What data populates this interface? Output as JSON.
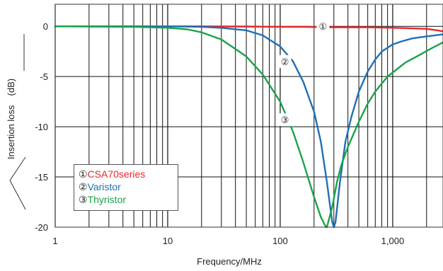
{
  "chart_data": {
    "type": "line",
    "xlabel": "Frequency/MHz",
    "ylabel": "Insertion loss　(dB)",
    "x_scale": "log",
    "xlim": [
      1,
      2800
    ],
    "ylim": [
      -20,
      2.2
    ],
    "grid": true,
    "x_ticks": [
      {
        "value": 1,
        "label": "1"
      },
      {
        "value": 10,
        "label": "10"
      },
      {
        "value": 100,
        "label": "100"
      },
      {
        "value": 1000,
        "label": "1,000"
      }
    ],
    "y_ticks": [
      {
        "value": 0,
        "label": "0"
      },
      {
        "value": -5,
        "label": "-5"
      },
      {
        "value": -10,
        "label": "-10"
      },
      {
        "value": -15,
        "label": "-15"
      },
      {
        "value": -20,
        "label": "-20"
      }
    ],
    "legend": {
      "placement": "bottom-left",
      "items": [
        {
          "marker": "①",
          "name": "CSA70series",
          "color": "#e8262a"
        },
        {
          "marker": "②",
          "name": "Varistor",
          "color": "#1f6fb5"
        },
        {
          "marker": "③",
          "name": "Thyristor",
          "color": "#1aa24a"
        }
      ]
    },
    "series": [
      {
        "name": "CSA70series",
        "marker": "①",
        "color": "#e8262a",
        "x": [
          1,
          10,
          50,
          100,
          150,
          300,
          600,
          1000,
          1500,
          2000,
          2500,
          2800
        ],
        "y": [
          0,
          0,
          -0.02,
          -0.05,
          -0.05,
          -0.1,
          -0.1,
          -0.15,
          -0.2,
          -0.25,
          -0.4,
          -0.5
        ]
      },
      {
        "name": "Varistor",
        "marker": "②",
        "color": "#1f6fb5",
        "x": [
          1,
          10,
          20,
          30,
          50,
          70,
          100,
          130,
          160,
          200,
          230,
          260,
          290,
          300,
          310,
          340,
          380,
          430,
          500,
          600,
          700,
          800,
          1000,
          1200,
          1500,
          2000,
          2800
        ],
        "y": [
          0,
          0,
          -0.05,
          -0.15,
          -0.4,
          -0.9,
          -2.0,
          -3.5,
          -5.5,
          -8.5,
          -11.5,
          -15.5,
          -19.5,
          -20,
          -19.5,
          -15.5,
          -11.5,
          -9,
          -6.5,
          -4.5,
          -3.3,
          -2.5,
          -1.8,
          -1.5,
          -1.2,
          -1.0,
          -0.8
        ]
      },
      {
        "name": "Thyristor",
        "marker": "③",
        "color": "#1aa24a",
        "x": [
          1,
          5,
          10,
          15,
          20,
          30,
          50,
          70,
          100,
          130,
          160,
          200,
          230,
          255,
          260,
          290,
          320,
          350,
          400,
          500,
          600,
          700,
          800,
          900,
          1000,
          1300,
          1700,
          2200,
          2800
        ],
        "y": [
          0,
          -0.05,
          -0.15,
          -0.3,
          -0.6,
          -1.3,
          -3.0,
          -4.8,
          -7.5,
          -10.5,
          -13.5,
          -17.0,
          -19.0,
          -20,
          -20,
          -18,
          -15.5,
          -13.8,
          -12.0,
          -9.5,
          -7.7,
          -6.5,
          -5.7,
          -5.0,
          -4.6,
          -3.6,
          -2.9,
          -2.2,
          -1.6
        ]
      }
    ],
    "annotations": [
      {
        "text": "①",
        "x": 240,
        "y": 0
      },
      {
        "text": "②",
        "x": 110,
        "y": -3.5
      },
      {
        "text": "③",
        "x": 110,
        "y": -9.3
      }
    ]
  }
}
